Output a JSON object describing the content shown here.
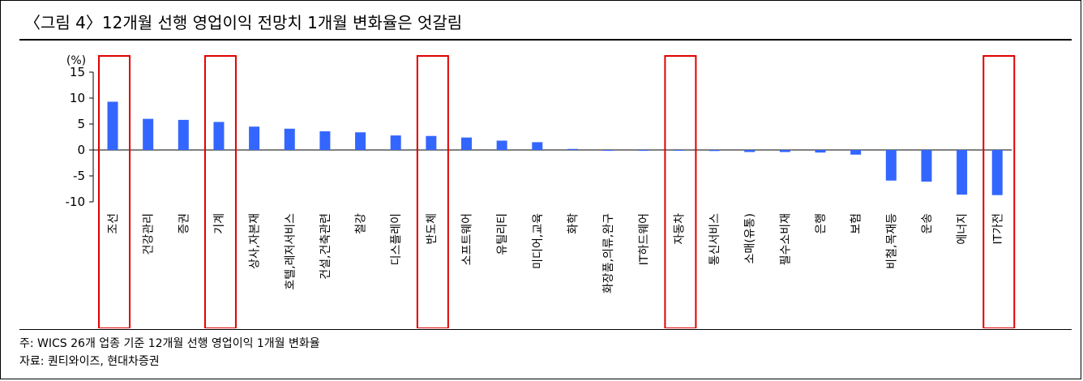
{
  "header": {
    "title": "〈그림 4〉12개월 선행 영업이익 전망치 1개월 변화율은 엇갈림"
  },
  "chart_data": {
    "type": "bar",
    "title": "",
    "xlabel": "",
    "ylabel": "(%)",
    "ylim": [
      -10,
      15
    ],
    "yticks": [
      15,
      10,
      5,
      0,
      -5,
      -10
    ],
    "grid": false,
    "bar_color": "#3366ff",
    "highlight_color": "#e00000",
    "categories": [
      "조선",
      "건강관리",
      "증권",
      "기계",
      "상사,자본재",
      "호텔,레저서비스",
      "건설,건축관련",
      "철강",
      "디스플레이",
      "반도체",
      "소프트웨어",
      "유틸리티",
      "미디어,교육",
      "화학",
      "화장품,의류,완구",
      "IT하드웨어",
      "자동차",
      "통신서비스",
      "소매(유통)",
      "필수소비재",
      "은행",
      "보험",
      "비철,목재등",
      "운송",
      "에너지",
      "IT가전"
    ],
    "values": [
      9.3,
      6.0,
      5.8,
      5.4,
      4.5,
      4.1,
      3.6,
      3.4,
      2.8,
      2.7,
      2.4,
      1.8,
      1.5,
      0.2,
      -0.1,
      -0.1,
      -0.1,
      -0.2,
      -0.4,
      -0.4,
      -0.5,
      -0.9,
      -5.9,
      -6.1,
      -8.6,
      -8.7
    ],
    "highlighted": [
      "조선",
      "기계",
      "반도체",
      "자동차",
      "IT가전"
    ]
  },
  "notes": {
    "note": "주: WICS 26개 업종 기준 12개월 선행 영업이익 1개월 변화율",
    "source": "자료: 퀀티와이즈, 현대차증권"
  }
}
